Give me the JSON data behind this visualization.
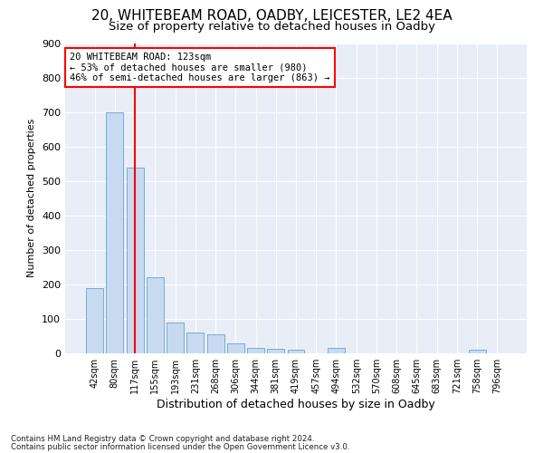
{
  "title1": "20, WHITEBEAM ROAD, OADBY, LEICESTER, LE2 4EA",
  "title2": "Size of property relative to detached houses in Oadby",
  "xlabel": "Distribution of detached houses by size in Oadby",
  "ylabel": "Number of detached properties",
  "categories": [
    "42sqm",
    "80sqm",
    "117sqm",
    "155sqm",
    "193sqm",
    "231sqm",
    "268sqm",
    "306sqm",
    "344sqm",
    "381sqm",
    "419sqm",
    "457sqm",
    "494sqm",
    "532sqm",
    "570sqm",
    "608sqm",
    "645sqm",
    "683sqm",
    "721sqm",
    "758sqm",
    "796sqm"
  ],
  "values": [
    190,
    700,
    540,
    220,
    90,
    60,
    55,
    30,
    15,
    12,
    10,
    0,
    15,
    0,
    0,
    0,
    0,
    0,
    0,
    10,
    0
  ],
  "bar_color": "#c8daf0",
  "bar_edge_color": "#7aaad0",
  "redline_index": 2,
  "annotation_line1": "20 WHITEBEAM ROAD: 123sqm",
  "annotation_line2": "← 53% of detached houses are smaller (980)",
  "annotation_line3": "46% of semi-detached houses are larger (863) →",
  "footer1": "Contains HM Land Registry data © Crown copyright and database right 2024.",
  "footer2": "Contains public sector information licensed under the Open Government Licence v3.0.",
  "ylim": [
    0,
    900
  ],
  "yticks": [
    0,
    100,
    200,
    300,
    400,
    500,
    600,
    700,
    800,
    900
  ],
  "bg_color": "#ffffff",
  "plot_bg_color": "#e8eef8",
  "grid_color": "#ffffff",
  "title1_fontsize": 11,
  "title2_fontsize": 9.5
}
